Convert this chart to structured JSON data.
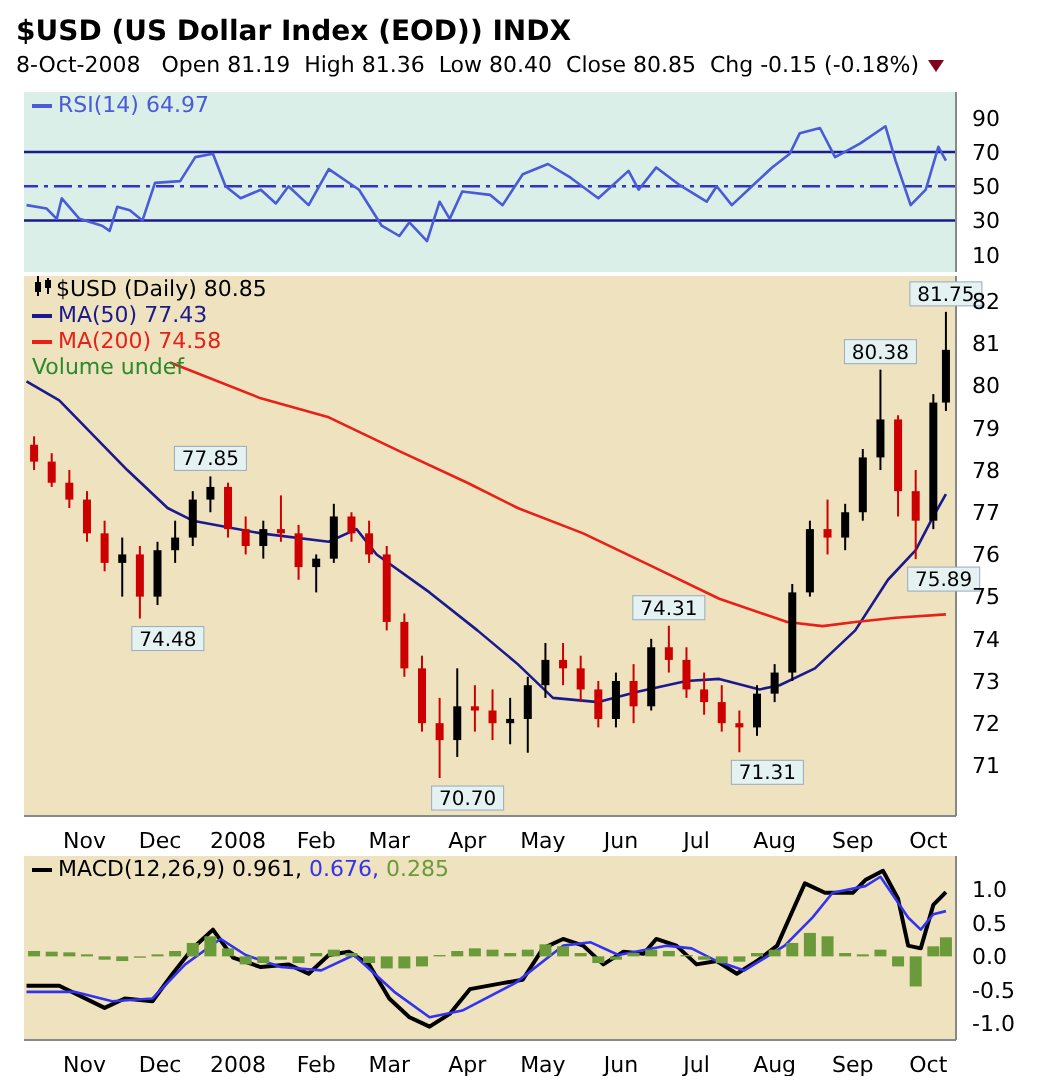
{
  "chart_data": [
    {
      "type": "line",
      "title": "$USD (US Dollar Index (EOD)) INDX",
      "subtitle": "8-Oct-2008   Open 81.19  High 81.36  Low 80.40  Close 80.85  Chg -0.15 (-0.18%)",
      "xlim": [
        "2007-10-08",
        "2008-10-12"
      ],
      "xticks": [
        {
          "value": "2007-11-01",
          "label": null
        },
        {
          "value": "2007-12-01",
          "label": null
        },
        {
          "value": "2008-01-01",
          "label": null
        },
        {
          "value": "2008-02-01",
          "label": null
        },
        {
          "value": "2008-03-01",
          "label": null
        },
        {
          "value": "2008-04-01",
          "label": null
        },
        {
          "value": "2008-05-01",
          "label": null
        },
        {
          "value": "2008-06-01",
          "label": null
        },
        {
          "value": "2008-07-01",
          "label": null
        },
        {
          "value": "2008-08-01",
          "label": null
        },
        {
          "value": "2008-09-01",
          "label": null
        },
        {
          "value": "2008-10-01",
          "label": null
        }
      ],
      "ylim": [
        0,
        105
      ],
      "yticks": [
        10,
        30,
        50,
        70,
        90
      ],
      "tick_labels": "y",
      "legend": "top left",
      "ref_lines": [
        {
          "axis": "y",
          "value": 70,
          "color": "#1a1a8c",
          "line_style": "solid"
        },
        {
          "axis": "y",
          "value": 50,
          "color": "#3333cc",
          "line_style": "dashed"
        },
        {
          "axis": "y",
          "value": 30,
          "color": "#1a1a8c",
          "line_style": "solid"
        }
      ],
      "series": [
        {
          "name": "RSI(14) 64.97",
          "color": "#4a5ad8",
          "x": [
            "2007-10-09",
            "2007-10-17",
            "2007-10-21",
            "2007-10-23",
            "2007-10-30",
            "2007-11-08",
            "2007-11-11",
            "2007-11-14",
            "2007-11-19",
            "2007-11-24",
            "2007-11-29",
            "2007-12-09",
            "2007-12-15",
            "2007-12-22",
            "2007-12-27",
            "2008-01-02",
            "2008-01-10",
            "2008-01-16",
            "2008-01-21",
            "2008-01-29",
            "2008-02-06",
            "2008-02-18",
            "2008-02-27",
            "2008-03-05",
            "2008-03-09",
            "2008-03-16",
            "2008-03-21",
            "2008-03-25",
            "2008-03-30",
            "2008-04-10",
            "2008-04-15",
            "2008-04-23",
            "2008-05-03",
            "2008-05-12",
            "2008-05-23",
            "2008-06-04",
            "2008-06-08",
            "2008-06-15",
            "2008-06-24",
            "2008-07-05",
            "2008-07-09",
            "2008-07-15",
            "2008-07-23",
            "2008-07-31",
            "2008-08-07",
            "2008-08-11",
            "2008-08-19",
            "2008-08-25",
            "2008-08-30",
            "2008-09-04",
            "2008-09-14",
            "2008-09-18",
            "2008-09-24",
            "2008-09-30",
            "2008-10-05",
            "2008-10-08"
          ],
          "values": [
            39,
            37,
            31,
            43,
            31,
            27,
            24,
            38,
            36,
            30,
            52,
            53,
            67,
            69,
            50,
            43,
            48,
            40,
            50,
            39,
            60,
            48,
            27,
            21,
            29,
            18,
            41,
            31,
            47,
            45,
            39,
            57,
            63,
            55,
            43,
            59,
            48,
            61,
            51,
            41,
            50,
            39,
            50,
            61,
            69,
            81,
            84,
            67,
            71,
            75,
            85,
            65,
            39,
            48,
            73,
            64.97
          ]
        }
      ]
    },
    {
      "type": "candlestick",
      "xlim": [
        "2007-10-08",
        "2008-10-12"
      ],
      "xticks": [
        {
          "value": "2007-11-01",
          "label": "Nov"
        },
        {
          "value": "2007-12-01",
          "label": "Dec"
        },
        {
          "value": "2008-01-01",
          "label": "2008"
        },
        {
          "value": "2008-02-01",
          "label": "Feb"
        },
        {
          "value": "2008-03-01",
          "label": "Mar"
        },
        {
          "value": "2008-04-01",
          "label": "Apr"
        },
        {
          "value": "2008-05-01",
          "label": "May"
        },
        {
          "value": "2008-06-01",
          "label": "Jun"
        },
        {
          "value": "2008-07-01",
          "label": "Jul"
        },
        {
          "value": "2008-08-01",
          "label": "Aug"
        },
        {
          "value": "2008-09-01",
          "label": "Sep"
        },
        {
          "value": "2008-10-01",
          "label": "Oct"
        }
      ],
      "ylim": [
        69.8,
        82.6
      ],
      "yticks": [
        71,
        72,
        73,
        74,
        75,
        76,
        77,
        78,
        79,
        80,
        81,
        82
      ],
      "legend": "top left",
      "annotations": [
        {
          "text": "77.85",
          "x": "2007-12-21",
          "y": 77.85
        },
        {
          "text": "74.48",
          "x": "2007-11-23",
          "y": 74.48
        },
        {
          "text": "70.70",
          "x": "2008-03-21",
          "y": 70.7
        },
        {
          "text": "74.31",
          "x": "2008-06-20",
          "y": 74.31
        },
        {
          "text": "71.31",
          "x": "2008-07-18",
          "y": 71.31
        },
        {
          "text": "80.38",
          "x": "2008-09-12",
          "y": 80.38
        },
        {
          "text": "75.89",
          "x": "2008-09-26",
          "y": 75.89
        },
        {
          "text": "81.75",
          "x": "2008-10-08",
          "y": 81.75
        },
        "Volume undef"
      ],
      "series": [
        {
          "name": "$USD (Daily) 80.85",
          "x": [
            "2007-10-12",
            "2007-10-19",
            "2007-10-26",
            "2007-11-02",
            "2007-11-09",
            "2007-11-16",
            "2007-11-23",
            "2007-11-30",
            "2007-12-07",
            "2007-12-14",
            "2007-12-21",
            "2007-12-28",
            "2008-01-04",
            "2008-01-11",
            "2008-01-18",
            "2008-01-25",
            "2008-02-01",
            "2008-02-08",
            "2008-02-15",
            "2008-02-22",
            "2008-02-29",
            "2008-03-07",
            "2008-03-14",
            "2008-03-21",
            "2008-03-28",
            "2008-04-04",
            "2008-04-11",
            "2008-04-18",
            "2008-04-25",
            "2008-05-02",
            "2008-05-09",
            "2008-05-16",
            "2008-05-23",
            "2008-05-30",
            "2008-06-06",
            "2008-06-13",
            "2008-06-20",
            "2008-06-27",
            "2008-07-04",
            "2008-07-11",
            "2008-07-18",
            "2008-07-25",
            "2008-08-01",
            "2008-08-08",
            "2008-08-15",
            "2008-08-22",
            "2008-08-29",
            "2008-09-05",
            "2008-09-12",
            "2008-09-19",
            "2008-09-26",
            "2008-10-03",
            "2008-10-08"
          ],
          "ohlc": [
            [
              78.6,
              78.8,
              78.0,
              78.2
            ],
            [
              78.2,
              78.4,
              77.6,
              77.7
            ],
            [
              77.7,
              78.0,
              77.1,
              77.3
            ],
            [
              77.3,
              77.5,
              76.3,
              76.5
            ],
            [
              76.5,
              76.8,
              75.6,
              75.8
            ],
            [
              75.8,
              76.4,
              75.0,
              76.0
            ],
            [
              76.0,
              76.2,
              74.48,
              75.0
            ],
            [
              75.0,
              76.3,
              74.8,
              76.1
            ],
            [
              76.1,
              76.8,
              75.8,
              76.4
            ],
            [
              76.4,
              77.5,
              76.2,
              77.3
            ],
            [
              77.3,
              77.85,
              77.0,
              77.6
            ],
            [
              77.6,
              77.7,
              76.4,
              76.6
            ],
            [
              76.6,
              76.9,
              76.0,
              76.2
            ],
            [
              76.2,
              76.8,
              75.9,
              76.6
            ],
            [
              76.6,
              77.4,
              76.3,
              76.5
            ],
            [
              76.5,
              76.7,
              75.4,
              75.7
            ],
            [
              75.7,
              76.0,
              75.1,
              75.9
            ],
            [
              75.9,
              77.2,
              75.8,
              76.9
            ],
            [
              76.9,
              77.0,
              76.3,
              76.5
            ],
            [
              76.5,
              76.8,
              75.8,
              76.0
            ],
            [
              76.0,
              76.2,
              74.2,
              74.4
            ],
            [
              74.4,
              74.6,
              73.1,
              73.3
            ],
            [
              73.3,
              73.6,
              71.8,
              72.0
            ],
            [
              72.0,
              72.6,
              70.7,
              71.6
            ],
            [
              71.6,
              73.3,
              71.2,
              72.4
            ],
            [
              72.4,
              72.9,
              71.8,
              72.3
            ],
            [
              72.3,
              72.8,
              71.6,
              72.0
            ],
            [
              72.0,
              72.6,
              71.5,
              72.1
            ],
            [
              72.1,
              73.1,
              71.3,
              72.9
            ],
            [
              72.9,
              73.9,
              72.6,
              73.5
            ],
            [
              73.5,
              73.9,
              72.9,
              73.3
            ],
            [
              73.3,
              73.6,
              72.5,
              72.8
            ],
            [
              72.8,
              73.0,
              71.9,
              72.1
            ],
            [
              72.1,
              73.2,
              71.9,
              73.0
            ],
            [
              73.0,
              73.4,
              72.0,
              72.4
            ],
            [
              72.4,
              74.0,
              72.3,
              73.8
            ],
            [
              73.8,
              74.31,
              73.2,
              73.5
            ],
            [
              73.5,
              73.8,
              72.6,
              72.8
            ],
            [
              72.8,
              73.2,
              72.2,
              72.5
            ],
            [
              72.5,
              72.9,
              71.8,
              72.0
            ],
            [
              72.0,
              72.3,
              71.31,
              71.9
            ],
            [
              71.9,
              72.9,
              71.7,
              72.7
            ],
            [
              72.7,
              73.4,
              72.5,
              73.2
            ],
            [
              73.2,
              75.3,
              73.0,
              75.1
            ],
            [
              75.1,
              76.8,
              75.0,
              76.6
            ],
            [
              76.6,
              77.3,
              76.0,
              76.4
            ],
            [
              76.4,
              77.2,
              76.1,
              77.0
            ],
            [
              77.0,
              78.5,
              76.8,
              78.3
            ],
            [
              78.3,
              80.38,
              78.0,
              79.2
            ],
            [
              79.2,
              79.3,
              76.9,
              77.5
            ],
            [
              77.5,
              78.0,
              75.89,
              76.8
            ],
            [
              76.8,
              79.8,
              76.6,
              79.6
            ],
            [
              79.6,
              81.75,
              79.4,
              80.85
            ]
          ],
          "colors": [
            "#cc0000",
            "#cc0000",
            "#cc0000",
            "#cc0000",
            "#cc0000",
            "#000000",
            "#cc0000",
            "#000000",
            "#000000",
            "#000000",
            "#000000",
            "#cc0000",
            "#cc0000",
            "#000000",
            "#cc0000",
            "#cc0000",
            "#000000",
            "#000000",
            "#cc0000",
            "#cc0000",
            "#cc0000",
            "#cc0000",
            "#cc0000",
            "#cc0000",
            "#000000",
            "#cc0000",
            "#cc0000",
            "#000000",
            "#000000",
            "#000000",
            "#cc0000",
            "#cc0000",
            "#cc0000",
            "#000000",
            "#cc0000",
            "#000000",
            "#cc0000",
            "#cc0000",
            "#cc0000",
            "#cc0000",
            "#cc0000",
            "#000000",
            "#000000",
            "#000000",
            "#000000",
            "#cc0000",
            "#000000",
            "#000000",
            "#000000",
            "#cc0000",
            "#cc0000",
            "#000000",
            "#000000"
          ]
        },
        {
          "name": "MA(50) 77.43",
          "type": "line",
          "color": "#1a1a8c",
          "x": [
            "2007-10-09",
            "2007-10-22",
            "2007-11-18",
            "2007-12-04",
            "2007-12-14",
            "2008-01-10",
            "2008-02-06",
            "2008-02-17",
            "2008-02-25",
            "2008-03-17",
            "2008-04-05",
            "2008-04-21",
            "2008-05-05",
            "2008-05-23",
            "2008-06-08",
            "2008-06-27",
            "2008-07-10",
            "2008-07-26",
            "2008-08-03",
            "2008-08-17",
            "2008-09-02",
            "2008-09-15",
            "2008-09-26",
            "2008-10-03",
            "2008-10-08"
          ],
          "values": [
            80.1,
            79.65,
            78.0,
            77.1,
            76.8,
            76.5,
            76.3,
            76.6,
            76.0,
            75.1,
            74.2,
            73.4,
            72.6,
            72.5,
            72.75,
            73.0,
            73.05,
            72.8,
            72.9,
            73.3,
            74.2,
            75.4,
            76.1,
            76.9,
            77.43
          ]
        },
        {
          "name": "MA(200) 74.58",
          "type": "line",
          "color": "#e8201a",
          "x": [
            "2007-12-05",
            "2008-01-10",
            "2008-02-06",
            "2008-03-05",
            "2008-04-01",
            "2008-04-21",
            "2008-05-17",
            "2008-06-14",
            "2008-07-10",
            "2008-08-06",
            "2008-08-20",
            "2008-09-02",
            "2008-09-18",
            "2008-10-08"
          ],
          "values": [
            80.55,
            79.7,
            79.25,
            78.45,
            77.7,
            77.1,
            76.5,
            75.7,
            74.95,
            74.4,
            74.3,
            74.4,
            74.5,
            74.58
          ]
        }
      ]
    },
    {
      "type": "line",
      "xlim": [
        "2007-10-08",
        "2008-10-12"
      ],
      "xticks": [
        {
          "value": "2007-11-01",
          "label": "Nov"
        },
        {
          "value": "2007-12-01",
          "label": "Dec"
        },
        {
          "value": "2008-01-01",
          "label": "2008"
        },
        {
          "value": "2008-02-01",
          "label": "Feb"
        },
        {
          "value": "2008-03-01",
          "label": "Mar"
        },
        {
          "value": "2008-04-01",
          "label": "Apr"
        },
        {
          "value": "2008-05-01",
          "label": "May"
        },
        {
          "value": "2008-06-01",
          "label": "Jun"
        },
        {
          "value": "2008-07-01",
          "label": "Jul"
        },
        {
          "value": "2008-08-01",
          "label": "Aug"
        },
        {
          "value": "2008-09-01",
          "label": "Sep"
        },
        {
          "value": "2008-10-01",
          "label": "Oct"
        }
      ],
      "ylim": [
        -1.25,
        1.5
      ],
      "yticks": [
        {
          "value": -1,
          "label": "-1.0"
        },
        {
          "value": -0.5,
          "label": "-0.5"
        },
        {
          "value": 0,
          "label": "0.0"
        },
        {
          "value": 0.5,
          "label": "0.5"
        },
        {
          "value": 1,
          "label": "1.0"
        }
      ],
      "legend": "top left",
      "series": [
        {
          "name": "MACD(12,26,9) 0.961,",
          "color": "#000000",
          "x": [
            "2007-10-09",
            "2007-10-22",
            "2007-11-09",
            "2007-11-17",
            "2007-11-28",
            "2007-12-06",
            "2007-12-14",
            "2007-12-22",
            "2007-12-30",
            "2008-01-10",
            "2008-01-21",
            "2008-01-29",
            "2008-02-06",
            "2008-02-14",
            "2008-02-22",
            "2008-03-01",
            "2008-03-09",
            "2008-03-17",
            "2008-03-25",
            "2008-04-02",
            "2008-04-15",
            "2008-04-23",
            "2008-05-01",
            "2008-05-09",
            "2008-05-17",
            "2008-05-25",
            "2008-06-02",
            "2008-06-10",
            "2008-06-15",
            "2008-06-23",
            "2008-07-01",
            "2008-07-09",
            "2008-07-17",
            "2008-07-25",
            "2008-08-02",
            "2008-08-08",
            "2008-08-13",
            "2008-08-21",
            "2008-09-01",
            "2008-09-06",
            "2008-09-13",
            "2008-09-19",
            "2008-09-23",
            "2008-09-28",
            "2008-10-03",
            "2008-10-08"
          ],
          "values": [
            -0.44,
            -0.44,
            -0.77,
            -0.63,
            -0.67,
            -0.26,
            0.12,
            0.4,
            -0.02,
            -0.16,
            -0.12,
            -0.26,
            0.02,
            0.07,
            -0.12,
            -0.63,
            -0.91,
            -1.05,
            -0.86,
            -0.49,
            -0.4,
            -0.35,
            0.12,
            0.26,
            0.16,
            -0.12,
            0.07,
            0.04,
            0.26,
            0.16,
            -0.12,
            -0.07,
            -0.26,
            -0.07,
            0.16,
            0.67,
            1.09,
            0.95,
            0.95,
            1.14,
            1.28,
            0.86,
            0.16,
            0.12,
            0.77,
            0.961
          ]
        },
        {
          "name": "0.676,",
          "color": "#3333ee",
          "x": [
            "2007-10-09",
            "2007-10-28",
            "2007-11-12",
            "2007-11-28",
            "2007-12-11",
            "2007-12-25",
            "2008-01-04",
            "2008-01-18",
            "2008-02-03",
            "2008-02-16",
            "2008-03-03",
            "2008-03-17",
            "2008-03-30",
            "2008-04-20",
            "2008-05-09",
            "2008-05-20",
            "2008-05-31",
            "2008-06-19",
            "2008-06-29",
            "2008-07-09",
            "2008-07-20",
            "2008-08-05",
            "2008-08-16",
            "2008-08-24",
            "2008-09-06",
            "2008-09-12",
            "2008-09-23",
            "2008-09-28",
            "2008-10-03",
            "2008-10-08"
          ],
          "values": [
            -0.53,
            -0.53,
            -0.67,
            -0.63,
            -0.12,
            0.26,
            0.02,
            -0.16,
            -0.21,
            0.02,
            -0.53,
            -0.91,
            -0.81,
            -0.4,
            0.16,
            0.21,
            0.02,
            0.16,
            0.12,
            -0.07,
            -0.21,
            0.16,
            0.58,
            0.95,
            1.05,
            1.19,
            0.58,
            0.4,
            0.63,
            0.676
          ]
        },
        {
          "name": "0.285",
          "type": "bar",
          "color": "#6b9a3a",
          "x": [
            "2007-10-12",
            "2007-10-19",
            "2007-10-26",
            "2007-11-02",
            "2007-11-09",
            "2007-11-16",
            "2007-11-23",
            "2007-11-30",
            "2007-12-07",
            "2007-12-14",
            "2007-12-21",
            "2007-12-28",
            "2008-01-04",
            "2008-01-11",
            "2008-01-18",
            "2008-01-25",
            "2008-02-01",
            "2008-02-08",
            "2008-02-15",
            "2008-02-22",
            "2008-02-29",
            "2008-03-07",
            "2008-03-14",
            "2008-03-21",
            "2008-03-28",
            "2008-04-04",
            "2008-04-11",
            "2008-04-18",
            "2008-04-25",
            "2008-05-02",
            "2008-05-09",
            "2008-05-16",
            "2008-05-23",
            "2008-05-30",
            "2008-06-06",
            "2008-06-13",
            "2008-06-20",
            "2008-06-27",
            "2008-07-04",
            "2008-07-11",
            "2008-07-18",
            "2008-07-25",
            "2008-08-01",
            "2008-08-08",
            "2008-08-15",
            "2008-08-22",
            "2008-08-29",
            "2008-09-05",
            "2008-09-12",
            "2008-09-19",
            "2008-09-26",
            "2008-10-03",
            "2008-10-08"
          ],
          "values": [
            0.08,
            0.07,
            0.06,
            0.03,
            -0.05,
            -0.07,
            -0.02,
            0.03,
            0.08,
            0.2,
            0.3,
            0.12,
            -0.12,
            -0.1,
            -0.05,
            -0.1,
            0.05,
            0.1,
            0.05,
            -0.1,
            -0.18,
            -0.18,
            -0.15,
            0.02,
            0.08,
            0.12,
            0.1,
            0.05,
            0.1,
            0.18,
            0.15,
            0.05,
            -0.1,
            -0.05,
            0.05,
            0.1,
            0.08,
            0.02,
            -0.05,
            -0.1,
            -0.08,
            0.05,
            0.1,
            0.2,
            0.35,
            0.3,
            0.05,
            0.03,
            0.1,
            -0.15,
            -0.45,
            0.15,
            0.285
          ]
        }
      ]
    }
  ]
}
